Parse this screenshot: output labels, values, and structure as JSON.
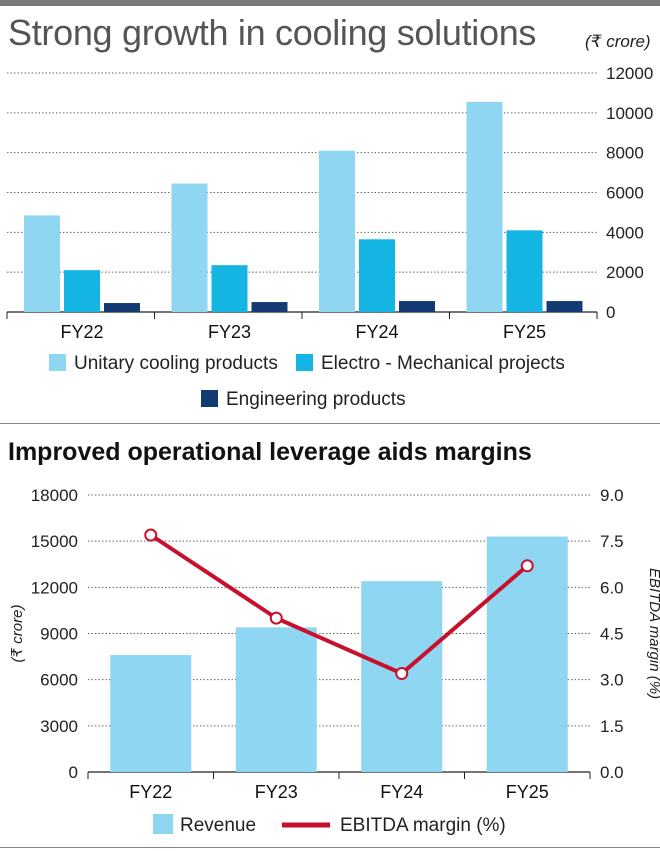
{
  "chart_data": [
    {
      "type": "bar",
      "title": "Strong growth in cooling solutions",
      "unit": "(₹ crore)",
      "categories": [
        "FY22",
        "FY23",
        "FY24",
        "FY25"
      ],
      "series": [
        {
          "name": "Unitary cooling products",
          "values": [
            4850,
            6450,
            8100,
            10550
          ],
          "color": "#8fd6f2"
        },
        {
          "name": "Electro - Mechanical projects",
          "values": [
            2100,
            2350,
            3650,
            4100
          ],
          "color": "#14b4e3"
        },
        {
          "name": "Engineering products",
          "values": [
            450,
            500,
            550,
            550
          ],
          "color": "#143a74"
        }
      ],
      "y_ticks": [
        "0",
        "2000",
        "4000",
        "6000",
        "8000",
        "10000",
        "12000"
      ],
      "ylim": [
        0,
        12000
      ],
      "y_axis_side": "right",
      "grid": true,
      "legend": "bottom"
    },
    {
      "type": "bar",
      "title": "Improved operational leverage aids margins",
      "categories": [
        "FY22",
        "FY23",
        "FY24",
        "FY25"
      ],
      "series": [
        {
          "name": "Revenue",
          "type": "bar",
          "values": [
            7600,
            9400,
            12400,
            15300
          ],
          "axis": "left",
          "color": "#8fd6f2"
        },
        {
          "name": "EBITDA margin (%)",
          "type": "line",
          "values": [
            7.7,
            5.0,
            3.2,
            6.7
          ],
          "axis": "right",
          "color": "#c8102e"
        }
      ],
      "ylabel": "(₹ crore)",
      "y2label": "EBITDA margin (%)",
      "y_ticks": [
        "0",
        "3000",
        "6000",
        "9000",
        "12000",
        "15000",
        "18000"
      ],
      "y2_ticks": [
        "0.0",
        "1.5",
        "3.0",
        "4.5",
        "6.0",
        "7.5",
        "9.0"
      ],
      "ylim": [
        0,
        18000
      ],
      "y2lim": [
        0,
        9
      ],
      "grid": true,
      "legend": "bottom"
    }
  ]
}
